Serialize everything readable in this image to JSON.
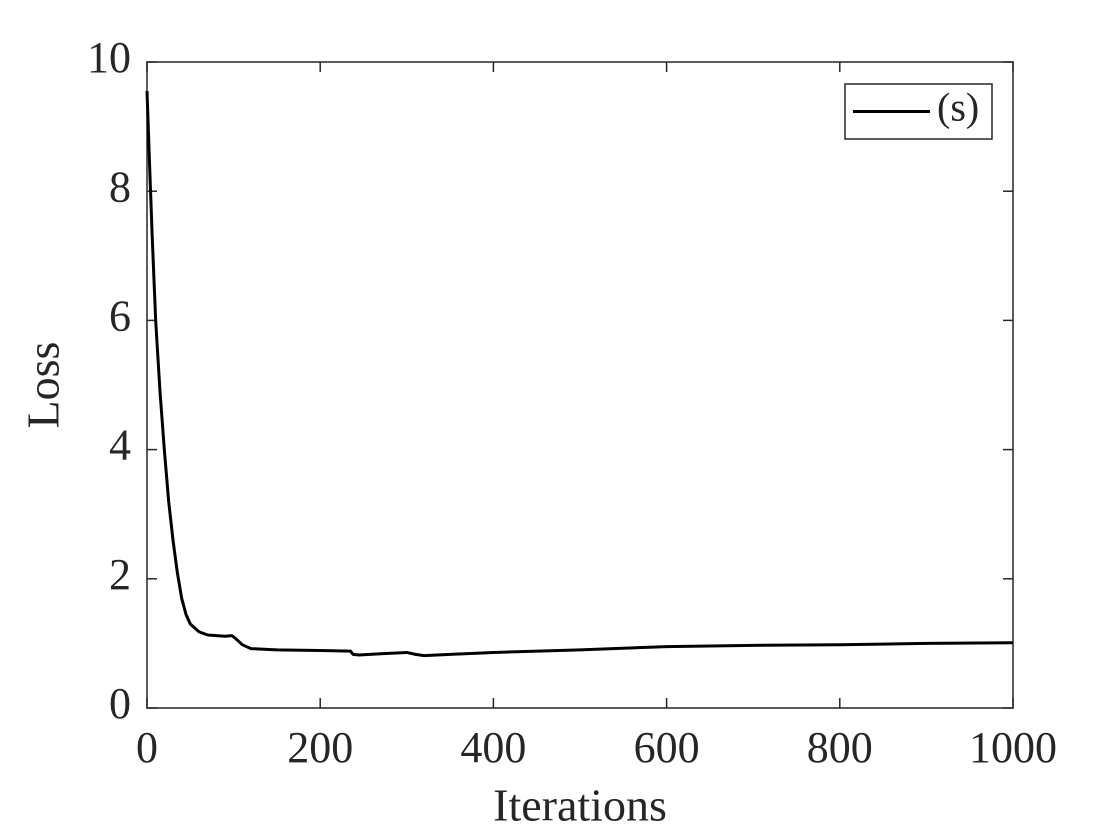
{
  "chart_data": {
    "type": "line",
    "x_label": "Iterations",
    "y_label": "Loss",
    "x": [
      0,
      3,
      6,
      10,
      15,
      20,
      25,
      30,
      35,
      40,
      45,
      50,
      60,
      70,
      80,
      90,
      98,
      102,
      110,
      120,
      150,
      200,
      235,
      238,
      245,
      270,
      300,
      310,
      320,
      350,
      400,
      500,
      600,
      700,
      800,
      900,
      1000
    ],
    "series": [
      {
        "name": "(s)",
        "color": "#000000",
        "values": [
          9.55,
          8.4,
          7.3,
          6.0,
          4.9,
          4.0,
          3.2,
          2.6,
          2.1,
          1.7,
          1.45,
          1.3,
          1.18,
          1.13,
          1.12,
          1.11,
          1.12,
          1.08,
          0.98,
          0.92,
          0.9,
          0.89,
          0.88,
          0.83,
          0.82,
          0.84,
          0.86,
          0.83,
          0.81,
          0.83,
          0.86,
          0.9,
          0.95,
          0.97,
          0.98,
          1.0,
          1.01
        ]
      }
    ],
    "xlim": [
      0,
      1000
    ],
    "xticks": [
      0,
      200,
      400,
      600,
      800,
      1000
    ],
    "ylim": [
      0,
      10
    ],
    "yticks": [
      0,
      2,
      4,
      6,
      8,
      10
    ],
    "grid": false,
    "legend": "northeast"
  }
}
